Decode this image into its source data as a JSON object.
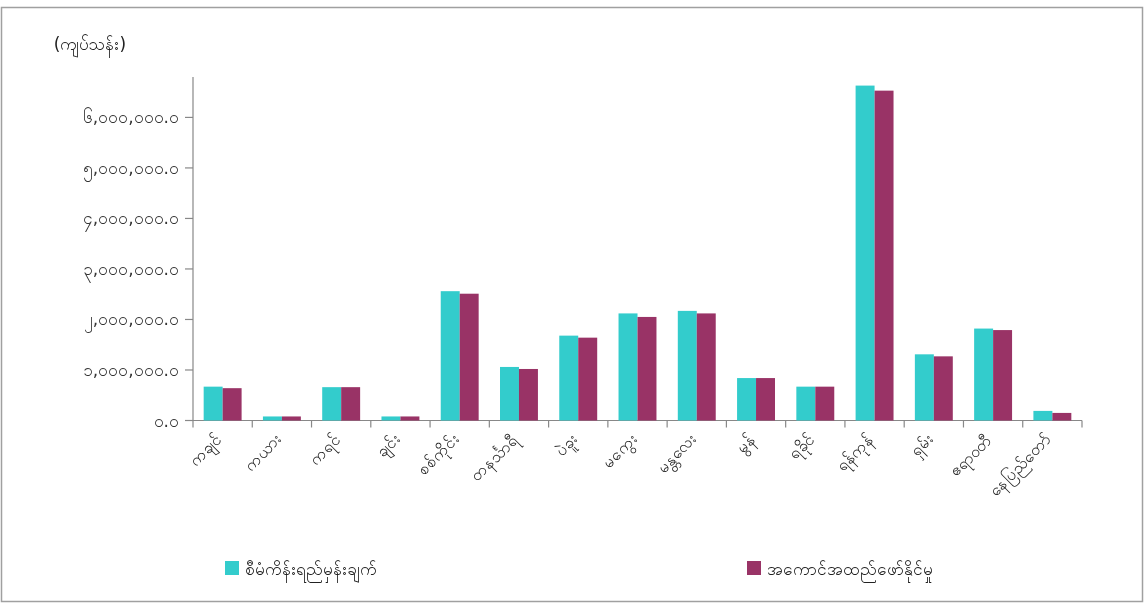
{
  "chart_data": {
    "type": "bar",
    "ylabel": "(ကျပ်သန်း)",
    "categories": [
      "ကချင်",
      "ကယား",
      "ကရင်",
      "ချင်း",
      "စစ်ကိုင်း",
      "တနင်္သာရီ",
      "ပဲခူး",
      "မကွေး",
      "မန္တလေး",
      "မွန်",
      "ရခိုင်",
      "ရန်ကုန်",
      "ရှမ်း",
      "ဧရာဝတီ",
      "နေပြည်တော်"
    ],
    "series": [
      {
        "name": "စီမံကိန်းရည်မှန်းချက်",
        "color": "#33cccc",
        "values": [
          670000,
          80000,
          660000,
          80000,
          2560000,
          1060000,
          1680000,
          2120000,
          2170000,
          840000,
          670000,
          6630000,
          1310000,
          1820000,
          190000
        ]
      },
      {
        "name": "အကောင်အထည်ဖော်နိုင်မှု",
        "color": "#993366",
        "values": [
          640000,
          80000,
          660000,
          80000,
          2510000,
          1020000,
          1640000,
          2050000,
          2120000,
          840000,
          670000,
          6530000,
          1270000,
          1790000,
          150000
        ]
      }
    ],
    "ylim": [
      0,
      6800000
    ],
    "yticks": [
      {
        "value": 0,
        "label": "၀.၀"
      },
      {
        "value": 1000000,
        "label": "၁,၀၀၀,၀၀၀.၀"
      },
      {
        "value": 2000000,
        "label": "၂,၀၀၀,၀၀၀.၀"
      },
      {
        "value": 3000000,
        "label": "၃,၀၀၀,၀၀၀.၀"
      },
      {
        "value": 4000000,
        "label": "၄,၀၀၀,၀၀၀.၀"
      },
      {
        "value": 5000000,
        "label": "၅,၀၀၀,၀၀၀.၀"
      },
      {
        "value": 6000000,
        "label": "၆,၀၀၀,၀၀၀.၀"
      }
    ],
    "grid": false,
    "legend": "bottom"
  }
}
